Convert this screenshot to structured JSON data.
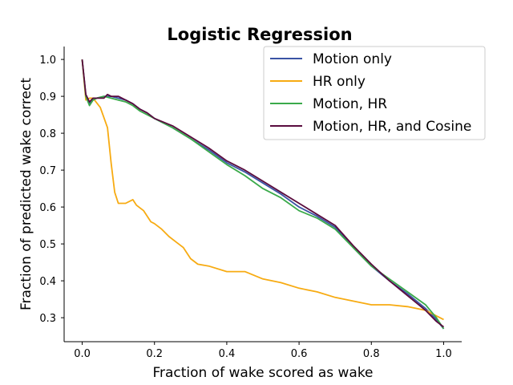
{
  "chart_data": {
    "type": "line",
    "title": "Logistic Regression",
    "xlabel": "Fraction of wake scored as wake",
    "ylabel": "Fraction of predicted wake correct",
    "xlim": [
      -0.05,
      1.05
    ],
    "ylim": [
      0.235,
      1.035
    ],
    "xticks": [
      0.0,
      0.2,
      0.4,
      0.6,
      0.8,
      1.0
    ],
    "xtick_labels": [
      "0.0",
      "0.2",
      "0.4",
      "0.6",
      "0.8",
      "1.0"
    ],
    "yticks": [
      0.3,
      0.4,
      0.5,
      0.6,
      0.7,
      0.8,
      0.9,
      1.0
    ],
    "ytick_labels": [
      "0.3",
      "0.4",
      "0.5",
      "0.6",
      "0.7",
      "0.8",
      "0.9",
      "1.0"
    ],
    "grid": false,
    "legend_position": "top-right",
    "series": [
      {
        "name": "Motion only",
        "color": "#3a53a4",
        "x": [
          0.0,
          0.01,
          0.02,
          0.03,
          0.04,
          0.06,
          0.08,
          0.1,
          0.12,
          0.14,
          0.16,
          0.18,
          0.2,
          0.25,
          0.3,
          0.35,
          0.4,
          0.45,
          0.5,
          0.55,
          0.6,
          0.65,
          0.7,
          0.75,
          0.8,
          0.85,
          0.9,
          0.95,
          0.98,
          1.0
        ],
        "y": [
          1.0,
          0.9,
          0.88,
          0.89,
          0.895,
          0.9,
          0.9,
          0.895,
          0.89,
          0.88,
          0.865,
          0.855,
          0.84,
          0.815,
          0.785,
          0.755,
          0.72,
          0.695,
          0.665,
          0.635,
          0.6,
          0.575,
          0.545,
          0.49,
          0.44,
          0.4,
          0.365,
          0.325,
          0.295,
          0.27
        ]
      },
      {
        "name": "HR only",
        "color": "#f7ab12",
        "x": [
          0.0,
          0.01,
          0.02,
          0.03,
          0.05,
          0.07,
          0.08,
          0.09,
          0.1,
          0.12,
          0.14,
          0.15,
          0.17,
          0.19,
          0.2,
          0.22,
          0.24,
          0.26,
          0.28,
          0.3,
          0.32,
          0.35,
          0.4,
          0.45,
          0.5,
          0.55,
          0.6,
          0.65,
          0.7,
          0.75,
          0.8,
          0.85,
          0.9,
          0.95,
          1.0
        ],
        "y": [
          1.0,
          0.89,
          0.895,
          0.895,
          0.87,
          0.815,
          0.72,
          0.64,
          0.61,
          0.61,
          0.62,
          0.605,
          0.59,
          0.56,
          0.555,
          0.54,
          0.52,
          0.505,
          0.49,
          0.46,
          0.445,
          0.44,
          0.425,
          0.425,
          0.405,
          0.395,
          0.38,
          0.37,
          0.355,
          0.345,
          0.335,
          0.335,
          0.33,
          0.32,
          0.295
        ]
      },
      {
        "name": "Motion, HR",
        "color": "#3aaa4a",
        "x": [
          0.0,
          0.01,
          0.02,
          0.03,
          0.04,
          0.06,
          0.08,
          0.1,
          0.12,
          0.14,
          0.16,
          0.18,
          0.2,
          0.25,
          0.3,
          0.35,
          0.4,
          0.45,
          0.5,
          0.55,
          0.6,
          0.65,
          0.7,
          0.75,
          0.8,
          0.85,
          0.9,
          0.95,
          0.98,
          1.0
        ],
        "y": [
          1.0,
          0.9,
          0.875,
          0.89,
          0.895,
          0.9,
          0.895,
          0.89,
          0.885,
          0.875,
          0.86,
          0.85,
          0.84,
          0.815,
          0.785,
          0.75,
          0.715,
          0.685,
          0.65,
          0.625,
          0.59,
          0.57,
          0.54,
          0.49,
          0.44,
          0.405,
          0.37,
          0.335,
          0.3,
          0.27
        ]
      },
      {
        "name": "Motion, HR, and Cosine",
        "color": "#5a0c3e",
        "x": [
          0.0,
          0.01,
          0.02,
          0.03,
          0.04,
          0.06,
          0.07,
          0.08,
          0.1,
          0.12,
          0.14,
          0.16,
          0.18,
          0.2,
          0.25,
          0.3,
          0.35,
          0.4,
          0.45,
          0.5,
          0.55,
          0.6,
          0.65,
          0.7,
          0.75,
          0.8,
          0.85,
          0.9,
          0.95,
          0.98,
          1.0
        ],
        "y": [
          1.0,
          0.905,
          0.885,
          0.895,
          0.895,
          0.895,
          0.905,
          0.9,
          0.9,
          0.89,
          0.88,
          0.865,
          0.855,
          0.84,
          0.82,
          0.79,
          0.76,
          0.725,
          0.7,
          0.67,
          0.64,
          0.61,
          0.58,
          0.55,
          0.495,
          0.445,
          0.4,
          0.36,
          0.32,
          0.29,
          0.275
        ]
      }
    ]
  }
}
